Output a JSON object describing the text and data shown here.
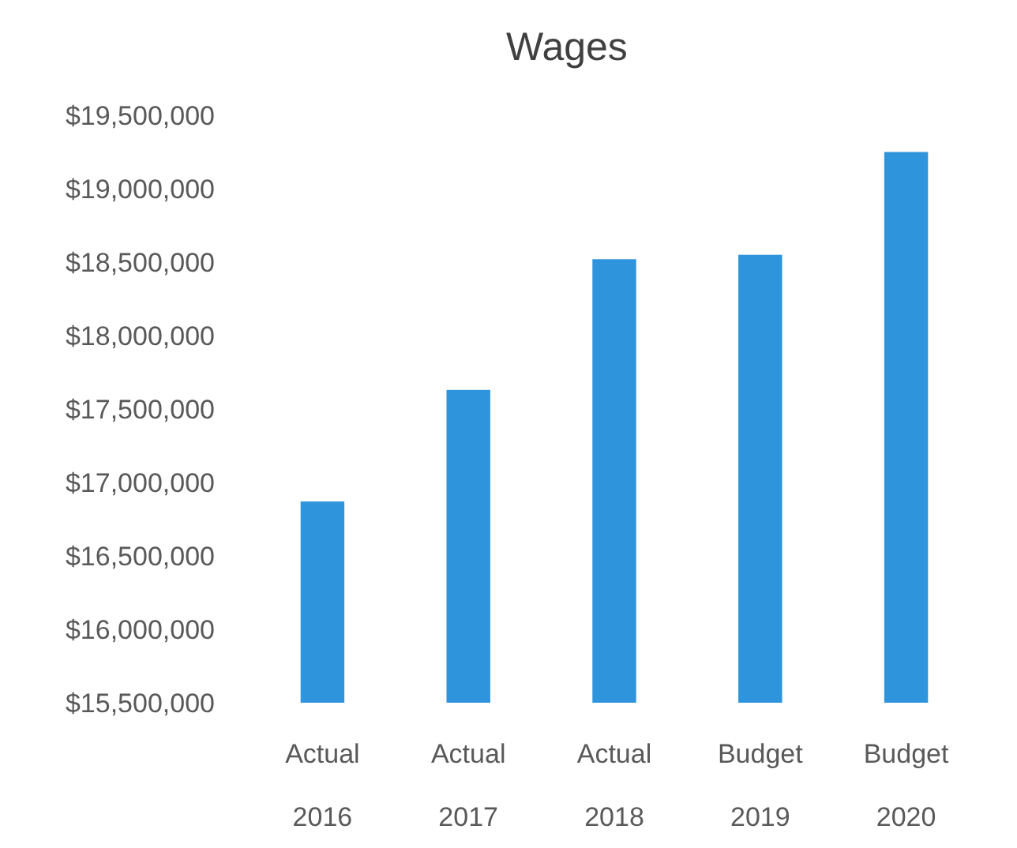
{
  "chart_data": {
    "type": "bar",
    "title": "Wages",
    "categories": [
      "Actual 2016",
      "Actual 2017",
      "Actual 2018",
      "Budget 2019",
      "Budget 2020"
    ],
    "values": [
      16870000,
      17630000,
      18520000,
      18550000,
      19250000
    ],
    "color": "#2e95dc",
    "ylim": [
      15500000,
      19500000
    ],
    "yticks": [
      {
        "value": 15500000,
        "label": "$15,500,000"
      },
      {
        "value": 16000000,
        "label": "$16,000,000"
      },
      {
        "value": 16500000,
        "label": "$16,500,000"
      },
      {
        "value": 17000000,
        "label": "$17,000,000"
      },
      {
        "value": 17500000,
        "label": "$17,500,000"
      },
      {
        "value": 18000000,
        "label": "$18,000,000"
      },
      {
        "value": 18500000,
        "label": "$18,500,000"
      },
      {
        "value": 19000000,
        "label": "$19,000,000"
      },
      {
        "value": 19500000,
        "label": "$19,500,000"
      }
    ],
    "grid": false
  }
}
